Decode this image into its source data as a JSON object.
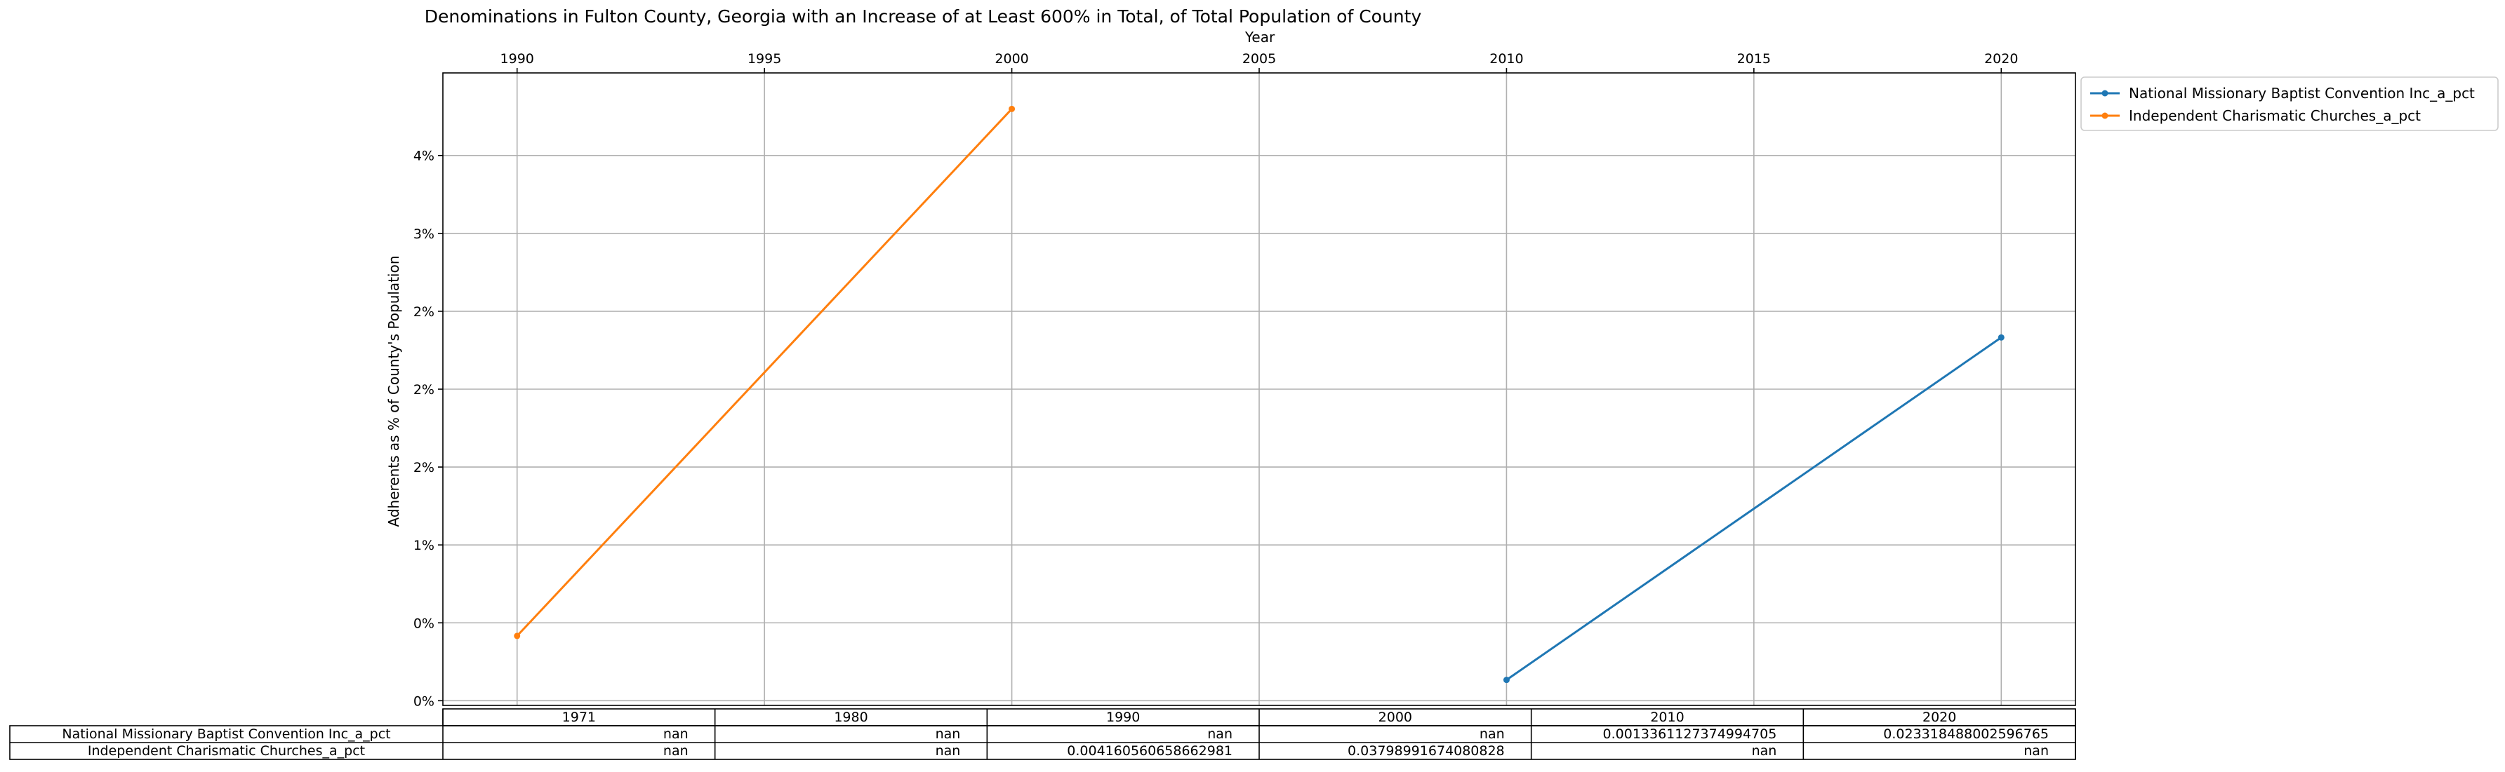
{
  "chart_data": {
    "type": "line",
    "title": "Denominations in Fulton County, Georgia with an Increase of at Least 600% in Total, of Total Population of County",
    "xlabel": "Year",
    "ylabel": "Adherents as % of County's Population",
    "xlim": [
      1988.5,
      2021.5
    ],
    "ylim": [
      -0.0003,
      0.0403
    ],
    "x_ticks": [
      1990,
      1995,
      2000,
      2005,
      2010,
      2015,
      2020
    ],
    "x_tick_labels": [
      "1990",
      "1995",
      "2000",
      "2005",
      "2010",
      "2015",
      "2020"
    ],
    "y_ticks": [
      0,
      0.005,
      0.01,
      0.015,
      0.02,
      0.025,
      0.03,
      0.035
    ],
    "y_tick_labels": [
      "0%",
      "0%",
      "1%",
      "2%",
      "2%",
      "2%",
      "3%",
      "4%"
    ],
    "x_axis_position": "top",
    "grid": true,
    "legend_placement": "outside upper right",
    "series": [
      {
        "name": "National Missionary Baptist Convention Inc_a_pct",
        "color": "#1f77b4",
        "marker": "circle",
        "x": [
          2010,
          2020
        ],
        "y": [
          0.0013361127374994705,
          0.023318488002596765
        ]
      },
      {
        "name": "Independent Charismatic Churches_a_pct",
        "color": "#ff7f0e",
        "marker": "circle",
        "x": [
          1990,
          2000
        ],
        "y": [
          0.004160560658662981,
          0.03798991674080828
        ]
      }
    ],
    "table": {
      "columns": [
        "1971",
        "1980",
        "1990",
        "2000",
        "2010",
        "2020"
      ],
      "rows": [
        {
          "label": "National Missionary Baptist Convention Inc_a_pct",
          "cells": [
            "nan",
            "nan",
            "nan",
            "nan",
            "0.0013361127374994705",
            "0.023318488002596765"
          ]
        },
        {
          "label": "Independent Charismatic Churches_a_pct",
          "cells": [
            "nan",
            "nan",
            "0.004160560658662981",
            "0.03798991674080828",
            "nan",
            "nan"
          ]
        }
      ]
    }
  }
}
